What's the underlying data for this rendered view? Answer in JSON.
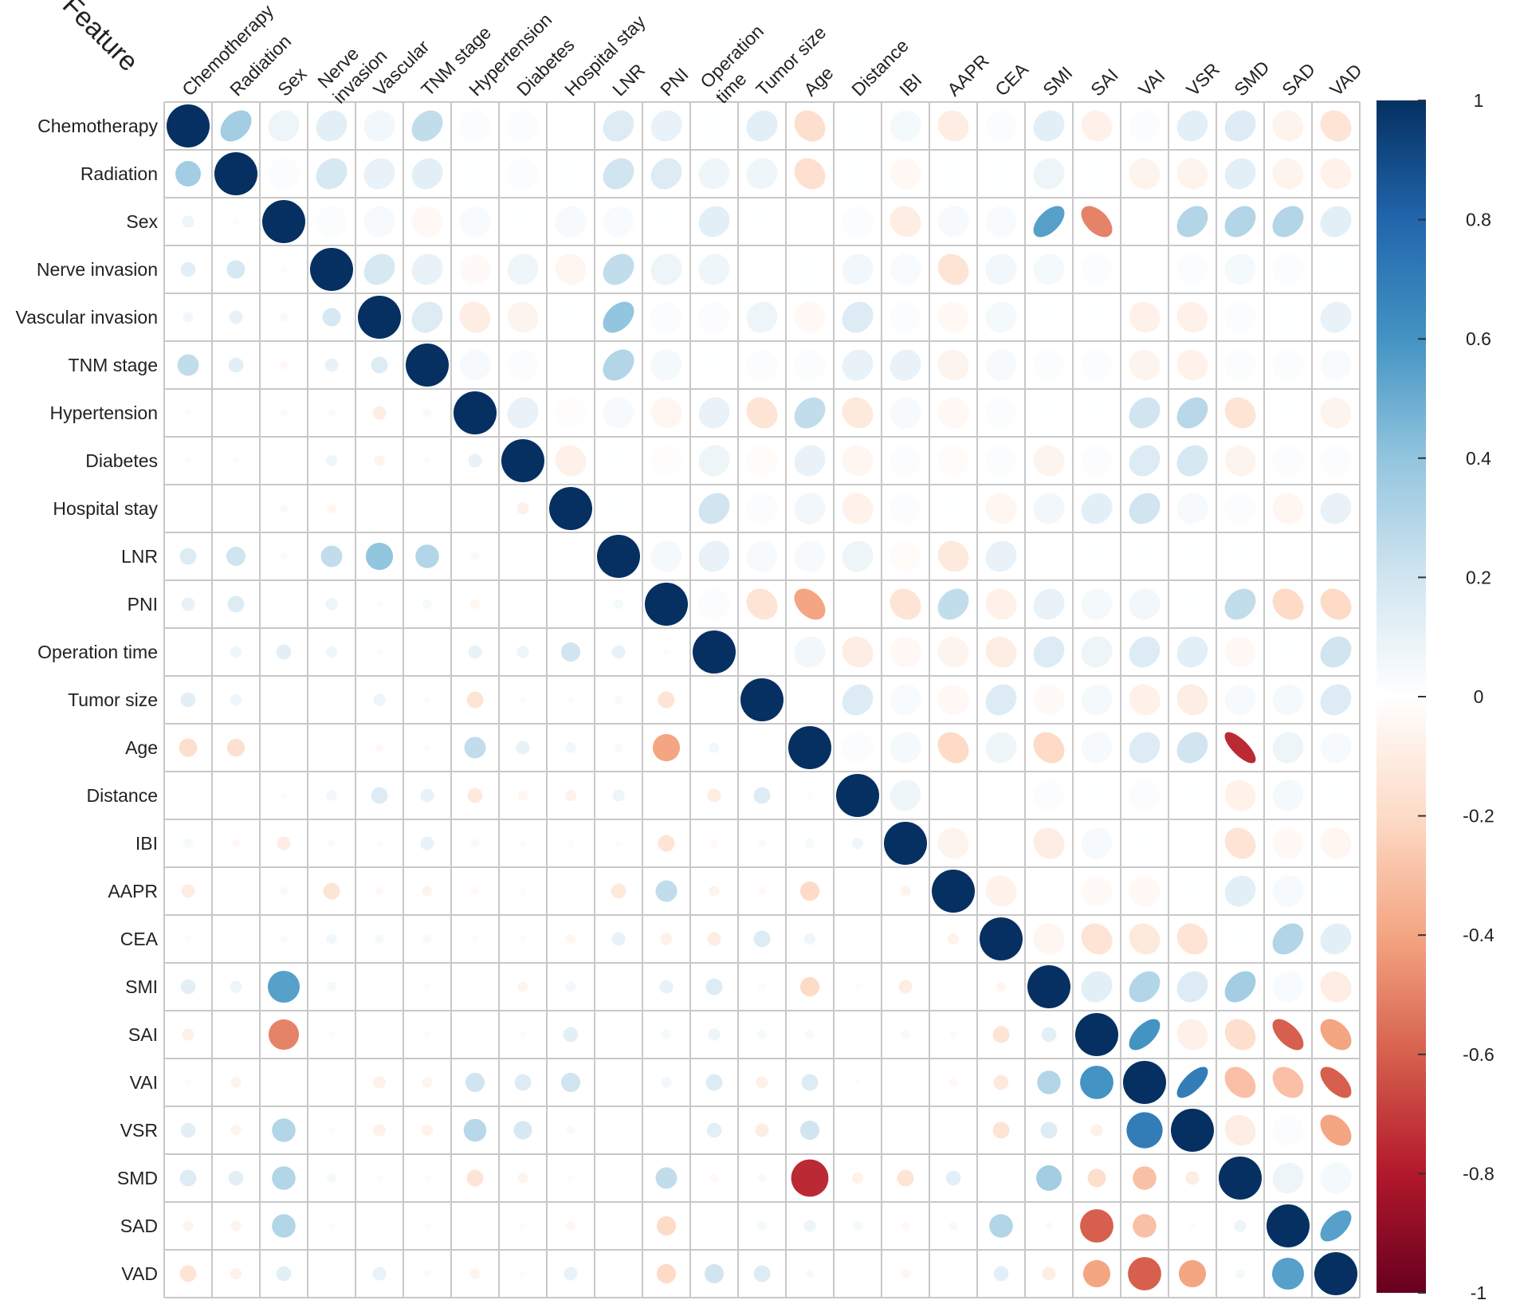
{
  "chart_data": {
    "type": "heatmap",
    "subtype": "correlation-matrix (lower triangle circles, upper triangle ellipses)",
    "corner_label": "Feature",
    "variables": [
      "Chemotherapy",
      "Radiation",
      "Sex",
      "Nerve invasion",
      "Vascular invasion",
      "TNM stage",
      "Hypertension",
      "Diabetes",
      "Hospital stay",
      "LNR",
      "PNI",
      "Operation time",
      "Tumor size",
      "Age",
      "Distance",
      "IBI",
      "AAPR",
      "CEA",
      "SMI",
      "SAI",
      "VAI",
      "VSR",
      "SMD",
      "SAD",
      "VAD"
    ],
    "column_labels": [
      [
        "Chemotherapy"
      ],
      [
        "Radiation"
      ],
      [
        "Sex"
      ],
      [
        "Nerve",
        "invasion"
      ],
      [
        "Vascular"
      ],
      [
        "TNM stage"
      ],
      [
        "Hypertension"
      ],
      [
        "Diabetes"
      ],
      [
        "Hospital stay"
      ],
      [
        "LNR"
      ],
      [
        "PNI"
      ],
      [
        "Operation",
        "time"
      ],
      [
        "Tumor size"
      ],
      [
        "Age"
      ],
      [
        "Distance"
      ],
      [
        "IBI"
      ],
      [
        "AAPR"
      ],
      [
        "CEA"
      ],
      [
        "SMI"
      ],
      [
        "SAI"
      ],
      [
        "VAI"
      ],
      [
        "VSR"
      ],
      [
        "SMD"
      ],
      [
        "SAD"
      ],
      [
        "VAD"
      ]
    ],
    "lower_triangle": [
      [],
      [
        0.35
      ],
      [
        0.08,
        0.02
      ],
      [
        0.12,
        0.18,
        0.02
      ],
      [
        0.06,
        0.1,
        0.04,
        0.18
      ],
      [
        0.25,
        0.12,
        -0.04,
        0.1,
        0.15
      ],
      [
        0.02,
        0.01,
        0.03,
        -0.03,
        -0.1,
        0.04
      ],
      [
        0.02,
        0.02,
        0.01,
        0.07,
        -0.06,
        0.02,
        0.1
      ],
      [
        0,
        0.01,
        0.04,
        -0.05,
        0.01,
        0,
        -0.01,
        -0.08
      ],
      [
        0.15,
        0.2,
        0.03,
        0.25,
        0.4,
        0.3,
        0.04,
        0.01,
        0.01
      ],
      [
        0.1,
        0.15,
        0.01,
        0.08,
        0.02,
        0.05,
        -0.05,
        -0.01,
        0,
        0.05
      ],
      [
        0.01,
        0.07,
        0.12,
        0.07,
        0.02,
        0.01,
        0.1,
        0.08,
        0.2,
        0.1,
        0.02
      ],
      [
        0.12,
        0.07,
        0.01,
        0,
        0.08,
        0.02,
        -0.15,
        -0.02,
        0.02,
        0.04,
        -0.15,
        0
      ],
      [
        -0.18,
        -0.17,
        0,
        0.01,
        -0.04,
        0.02,
        0.25,
        0.1,
        0.06,
        0.04,
        -0.4,
        0.06
      ],
      [
        0.01,
        0.01,
        0.02,
        0.06,
        0.15,
        0.1,
        -0.12,
        -0.05,
        -0.07,
        0.08,
        0,
        -0.1,
        0.15,
        0.02
      ],
      [
        0.05,
        -0.04,
        -0.1,
        0.03,
        0.02,
        0.1,
        0.04,
        0.02,
        0.02,
        -0.02,
        -0.15,
        -0.04,
        0.03,
        0.05,
        0.07
      ],
      [
        -0.1,
        0.01,
        0.04,
        -0.15,
        -0.04,
        -0.06,
        -0.04,
        -0.02,
        0.01,
        -0.12,
        0.25,
        -0.06,
        -0.04,
        -0.2,
        0,
        -0.06
      ],
      [
        0.02,
        0.01,
        0.03,
        0.06,
        0.05,
        0.04,
        0.02,
        0.02,
        -0.05,
        0.1,
        -0.08,
        -0.1,
        0.15,
        0.07,
        0,
        0,
        -0.07
      ],
      [
        0.12,
        0.08,
        0.55,
        0.05,
        0.01,
        0.02,
        0.01,
        -0.06,
        0.06,
        0,
        0.1,
        0.15,
        -0.03,
        -0.2,
        0.02,
        -0.1,
        0,
        -0.05
      ],
      [
        -0.08,
        0.01,
        -0.5,
        0.02,
        0.01,
        0.02,
        0.01,
        0.02,
        0.12,
        0.01,
        0.05,
        0.08,
        0.05,
        0.04,
        0.01,
        0.04,
        -0.03,
        -0.15,
        0.12
      ],
      [
        0.02,
        -0.06,
        0,
        0,
        -0.08,
        -0.06,
        0.2,
        0.15,
        0.2,
        0.01,
        0.06,
        0.15,
        -0.08,
        0.15,
        0.02,
        0.01,
        -0.04,
        -0.12,
        0.3,
        0.6
      ],
      [
        0.12,
        -0.06,
        0.3,
        0.02,
        -0.08,
        -0.07,
        0.28,
        0.18,
        0.04,
        0.01,
        0.01,
        0.12,
        -0.1,
        0.2,
        0.01,
        0,
        0.01,
        -0.15,
        0.15,
        -0.08,
        0.7
      ],
      [
        0.15,
        0.12,
        0.3,
        0.05,
        0.02,
        0.02,
        -0.15,
        -0.06,
        0.02,
        0.01,
        0.25,
        -0.04,
        0.04,
        -0.75,
        -0.07,
        -0.15,
        0.12,
        0.01,
        0.35,
        -0.18,
        -0.3,
        -0.1
      ],
      [
        -0.06,
        -0.06,
        0.3,
        0.02,
        0.01,
        0.02,
        0.01,
        0.02,
        -0.05,
        0,
        -0.2,
        0.01,
        0.05,
        0.08,
        0.05,
        -0.04,
        0.04,
        0.3,
        0.03,
        -0.6,
        -0.3,
        0.02,
        0.08
      ],
      [
        -0.15,
        -0.07,
        0.12,
        0.01,
        0.1,
        0.03,
        -0.06,
        0.02,
        0.1,
        0.01,
        -0.2,
        0.2,
        0.15,
        0.04,
        0.01,
        -0.05,
        0.01,
        0.12,
        -0.1,
        -0.4,
        -0.6,
        -0.4,
        0.05,
        0.55
      ]
    ],
    "colorbar": {
      "range": [
        -1,
        1
      ],
      "tick_labels": [
        "1",
        "0.8",
        "0.6",
        "0.4",
        "0.2",
        "0",
        "-0.2",
        "-0.4",
        "-0.6",
        "-0.8",
        "-1"
      ],
      "tick_values": [
        1,
        0.8,
        0.6,
        0.4,
        0.2,
        0,
        -0.2,
        -0.4,
        -0.6,
        -0.8,
        -1
      ],
      "color_stops": [
        [
          -1,
          "#67001f"
        ],
        [
          -0.8,
          "#b2182b"
        ],
        [
          -0.6,
          "#d6604d"
        ],
        [
          -0.4,
          "#f4a582"
        ],
        [
          -0.2,
          "#fddbc7"
        ],
        [
          0,
          "#ffffff"
        ],
        [
          0.2,
          "#d1e5f0"
        ],
        [
          0.4,
          "#92c5de"
        ],
        [
          0.6,
          "#4393c3"
        ],
        [
          0.8,
          "#2166ac"
        ],
        [
          1,
          "#053061"
        ]
      ]
    }
  }
}
